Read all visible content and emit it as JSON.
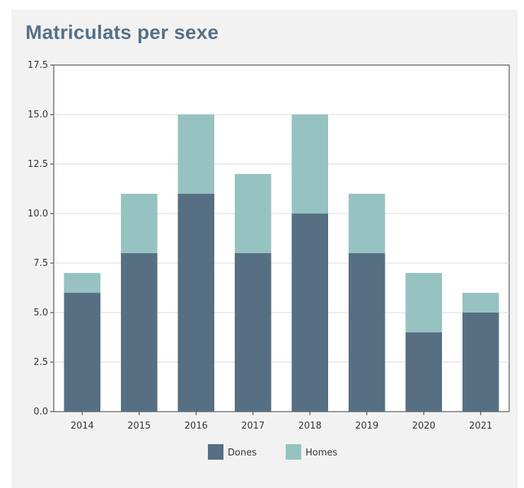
{
  "chart_data": {
    "type": "bar",
    "stacked": true,
    "title": "Matriculats per sexe",
    "categories": [
      "2014",
      "2015",
      "2016",
      "2017",
      "2018",
      "2019",
      "2020",
      "2021"
    ],
    "series": [
      {
        "name": "Dones",
        "color": "#566f83",
        "values": [
          6,
          8,
          11,
          8,
          10,
          8,
          4,
          5
        ]
      },
      {
        "name": "Homes",
        "color": "#96c2c1",
        "values": [
          1,
          3,
          4,
          4,
          5,
          3,
          3,
          1
        ]
      }
    ],
    "ylim": [
      0,
      17.5
    ],
    "yticks": [
      "0.0",
      "2.5",
      "5.0",
      "7.5",
      "10.0",
      "12.5",
      "15.0",
      "17.5"
    ],
    "grid": true,
    "legend_position": "bottom"
  }
}
